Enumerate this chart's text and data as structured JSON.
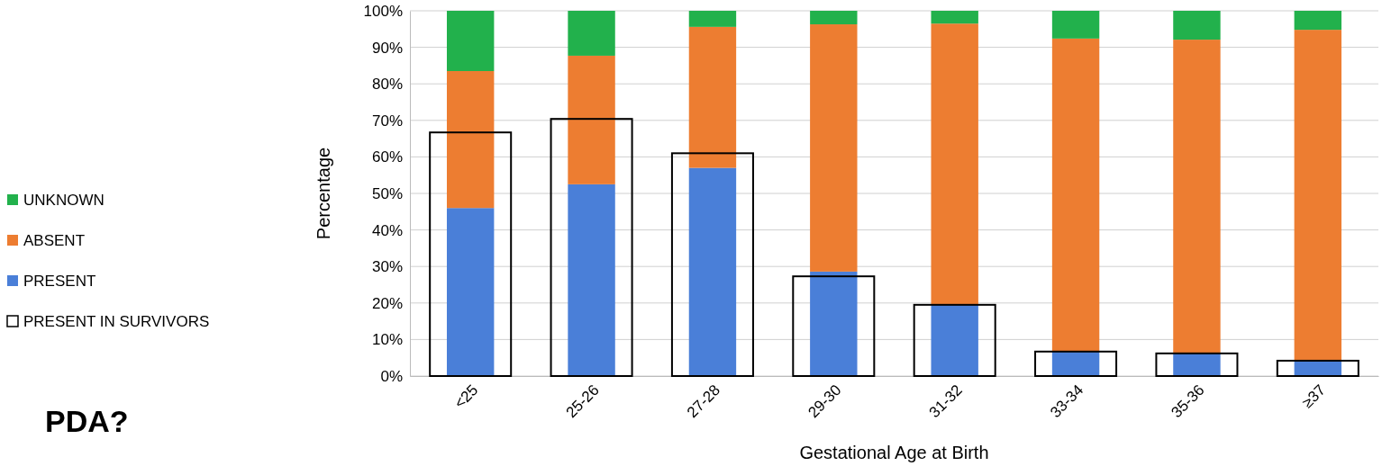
{
  "chart_data": [
    {
      "type": "bar",
      "stacked": true,
      "xlabel": "Gestational Age at Birth",
      "ylabel": "Percentage",
      "categories": [
        "<25",
        "25-26",
        "27-28",
        "29-30",
        "31-32",
        "33-34",
        "35-36",
        "≥37"
      ],
      "series": [
        {
          "name": "PRESENT",
          "color": "#4a7fd8",
          "values": [
            46,
            52.5,
            57,
            28.6,
            19.7,
            6.8,
            6.4,
            4.4
          ]
        },
        {
          "name": "ABSENT",
          "color": "#ed7d31",
          "values": [
            37.5,
            35.2,
            38.6,
            67.7,
            76.8,
            85.6,
            85.7,
            90.4
          ]
        },
        {
          "name": "UNKNOWN",
          "color": "#22b14c",
          "values": [
            16.5,
            12.3,
            4.4,
            3.7,
            3.5,
            7.6,
            7.9,
            5.2
          ]
        }
      ],
      "ylim": [
        0,
        100
      ],
      "yticks": [
        {
          "value": 0,
          "label": "0%"
        },
        {
          "value": 10,
          "label": "10%"
        },
        {
          "value": 20,
          "label": "20%"
        },
        {
          "value": 30,
          "label": "30%"
        },
        {
          "value": 40,
          "label": "40%"
        },
        {
          "value": 50,
          "label": "50%"
        },
        {
          "value": 60,
          "label": "60%"
        },
        {
          "value": 70,
          "label": "70%"
        },
        {
          "value": 80,
          "label": "80%"
        },
        {
          "value": 90,
          "label": "90%"
        },
        {
          "value": 100,
          "label": "100%"
        }
      ],
      "grid": "y",
      "legend": "left",
      "annotations": [
        "PDA?"
      ]
    },
    {
      "type": "bar",
      "categories": [
        null,
        null,
        null,
        null,
        null,
        null,
        null,
        null
      ],
      "series": [
        {
          "name": "PRESENT IN SURVIVORS",
          "color": "#000000",
          "values": [
            66.7,
            70.4,
            61,
            27.3,
            19.5,
            6.7,
            6.2,
            4.2
          ]
        }
      ],
      "ylim": [
        0,
        100
      ],
      "tick_labels": false,
      "legend": "left"
    }
  ]
}
